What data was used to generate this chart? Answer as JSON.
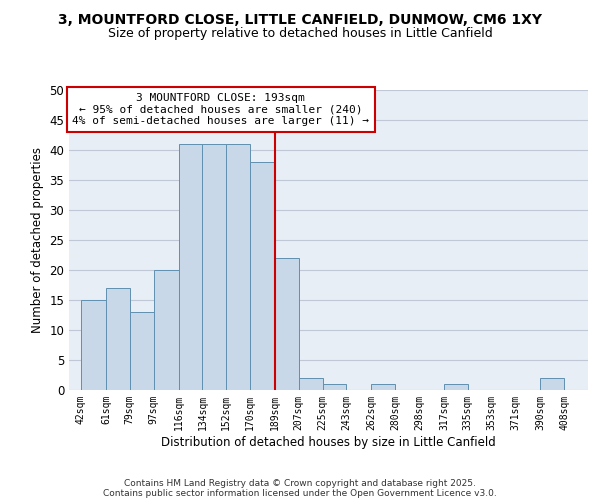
{
  "title1": "3, MOUNTFORD CLOSE, LITTLE CANFIELD, DUNMOW, CM6 1XY",
  "title2": "Size of property relative to detached houses in Little Canfield",
  "xlabel": "Distribution of detached houses by size in Little Canfield",
  "ylabel": "Number of detached properties",
  "bar_left_edges": [
    42,
    61,
    79,
    97,
    116,
    134,
    152,
    170,
    189,
    207,
    225,
    243,
    262,
    280,
    298,
    317,
    335,
    353,
    371,
    390
  ],
  "bar_heights": [
    15,
    17,
    13,
    20,
    41,
    41,
    41,
    38,
    22,
    2,
    1,
    0,
    1,
    0,
    0,
    1,
    0,
    0,
    0,
    2
  ],
  "bar_widths": [
    19,
    18,
    18,
    19,
    18,
    18,
    18,
    19,
    18,
    18,
    18,
    19,
    18,
    18,
    19,
    18,
    18,
    18,
    19,
    18
  ],
  "tick_labels": [
    "42sqm",
    "61sqm",
    "79sqm",
    "97sqm",
    "116sqm",
    "134sqm",
    "152sqm",
    "170sqm",
    "189sqm",
    "207sqm",
    "225sqm",
    "243sqm",
    "262sqm",
    "280sqm",
    "298sqm",
    "317sqm",
    "335sqm",
    "353sqm",
    "371sqm",
    "390sqm",
    "408sqm"
  ],
  "tick_positions": [
    42,
    61,
    79,
    97,
    116,
    134,
    152,
    170,
    189,
    207,
    225,
    243,
    262,
    280,
    298,
    317,
    335,
    353,
    371,
    390,
    408
  ],
  "ylim": [
    0,
    50
  ],
  "xlim": [
    33,
    426
  ],
  "bar_color": "#c8d8e8",
  "bar_edge_color": "#6090b0",
  "grid_color": "#c0c8d8",
  "background_color": "#e8eef5",
  "vline_x": 189,
  "vline_color": "#cc0000",
  "annotation_text": "3 MOUNTFORD CLOSE: 193sqm\n← 95% of detached houses are smaller (240)\n4% of semi-detached houses are larger (11) →",
  "annotation_box_color": "#cc0000",
  "footer_line1": "Contains HM Land Registry data © Crown copyright and database right 2025.",
  "footer_line2": "Contains public sector information licensed under the Open Government Licence v3.0.",
  "title_fontsize": 10,
  "subtitle_fontsize": 9,
  "axis_label_fontsize": 8.5,
  "tick_fontsize": 7,
  "annotation_fontsize": 8,
  "footer_fontsize": 6.5,
  "ytick_labels": [
    0,
    5,
    10,
    15,
    20,
    25,
    30,
    35,
    40,
    45,
    50
  ]
}
